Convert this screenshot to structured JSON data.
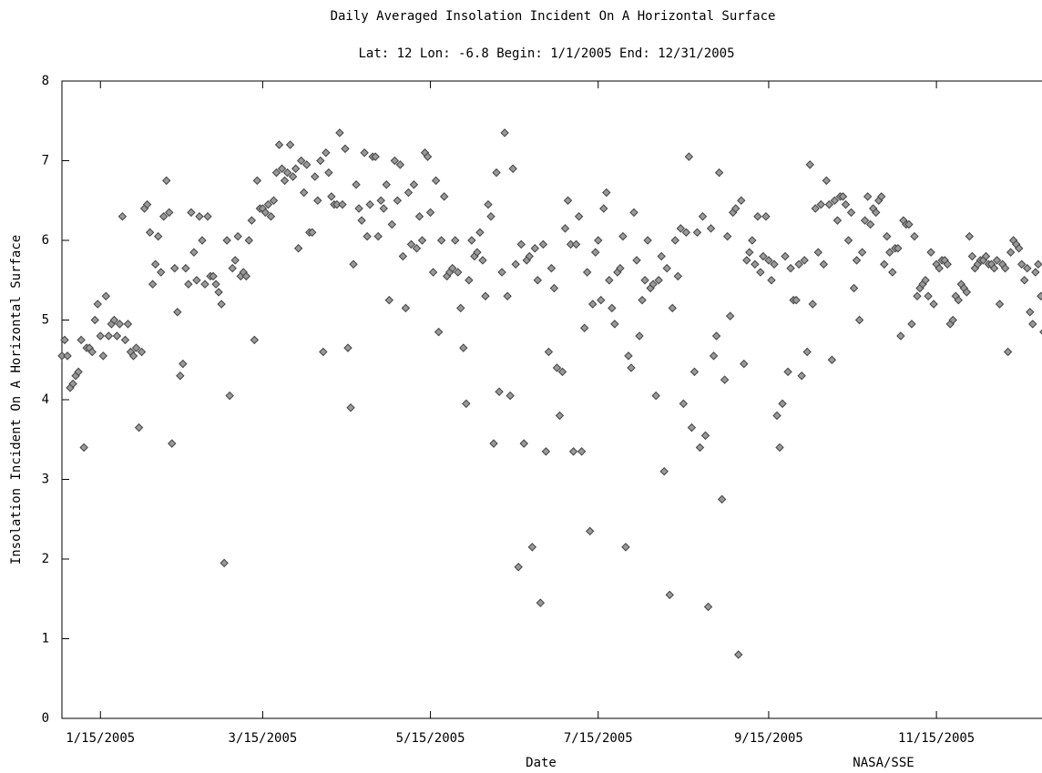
{
  "chart_data": {
    "type": "scatter",
    "title": "Daily Averaged Insolation Incident On A Horizontal Surface",
    "subtitle": "Lat: 12 Lon: -6.8   Begin: 1/1/2005   End: 12/31/2005",
    "y_label": "Insolation Incident On A Horizontal Surface",
    "x_label": "Date",
    "credit": "NASA/SSE",
    "color": "#999999",
    "xlim": [
      "1/1/2005",
      "12/31/2005"
    ],
    "xticks": [
      "1/15/2005",
      "3/15/2005",
      "5/15/2005",
      "7/15/2005",
      "9/15/2005",
      "11/15/2005"
    ],
    "ylim": [
      0,
      8
    ],
    "yticks": [
      0,
      1,
      2,
      3,
      4,
      5,
      6,
      7,
      8
    ],
    "x": [
      "1/1/2005",
      "1/2/2005",
      "1/3/2005",
      "1/4/2005",
      "1/5/2005",
      "1/6/2005",
      "1/7/2005",
      "1/8/2005",
      "1/9/2005",
      "1/10/2005",
      "1/11/2005",
      "1/12/2005",
      "1/13/2005",
      "1/14/2005",
      "1/15/2005",
      "1/16/2005",
      "1/17/2005",
      "1/18/2005",
      "1/19/2005",
      "1/20/2005",
      "1/21/2005",
      "1/22/2005",
      "1/23/2005",
      "1/24/2005",
      "1/25/2005",
      "1/26/2005",
      "1/27/2005",
      "1/28/2005",
      "1/29/2005",
      "1/30/2005",
      "1/31/2005",
      "2/1/2005",
      "2/2/2005",
      "2/3/2005",
      "2/4/2005",
      "2/5/2005",
      "2/6/2005",
      "2/7/2005",
      "2/8/2005",
      "2/9/2005",
      "2/10/2005",
      "2/11/2005",
      "2/12/2005",
      "2/13/2005",
      "2/14/2005",
      "2/15/2005",
      "2/16/2005",
      "2/17/2005",
      "2/18/2005",
      "2/19/2005",
      "2/20/2005",
      "2/21/2005",
      "2/22/2005",
      "2/23/2005",
      "2/24/2005",
      "2/25/2005",
      "2/26/2005",
      "2/27/2005",
      "2/28/2005",
      "3/1/2005",
      "3/2/2005",
      "3/3/2005",
      "3/4/2005",
      "3/5/2005",
      "3/6/2005",
      "3/7/2005",
      "3/8/2005",
      "3/9/2005",
      "3/10/2005",
      "3/11/2005",
      "3/12/2005",
      "3/13/2005",
      "3/14/2005",
      "3/15/2005",
      "3/16/2005",
      "3/17/2005",
      "3/18/2005",
      "3/19/2005",
      "3/20/2005",
      "3/21/2005",
      "3/22/2005",
      "3/23/2005",
      "3/24/2005",
      "3/25/2005",
      "3/26/2005",
      "3/27/2005",
      "3/28/2005",
      "3/29/2005",
      "3/30/2005",
      "3/31/2005",
      "4/1/2005",
      "4/2/2005",
      "4/3/2005",
      "4/4/2005",
      "4/5/2005",
      "4/6/2005",
      "4/7/2005",
      "4/8/2005",
      "4/9/2005",
      "4/10/2005",
      "4/11/2005",
      "4/12/2005",
      "4/13/2005",
      "4/14/2005",
      "4/15/2005",
      "4/16/2005",
      "4/17/2005",
      "4/18/2005",
      "4/19/2005",
      "4/20/2005",
      "4/21/2005",
      "4/22/2005",
      "4/23/2005",
      "4/24/2005",
      "4/25/2005",
      "4/26/2005",
      "4/27/2005",
      "4/28/2005",
      "4/29/2005",
      "4/30/2005",
      "5/1/2005",
      "5/2/2005",
      "5/3/2005",
      "5/4/2005",
      "5/5/2005",
      "5/6/2005",
      "5/7/2005",
      "5/8/2005",
      "5/9/2005",
      "5/10/2005",
      "5/11/2005",
      "5/12/2005",
      "5/13/2005",
      "5/14/2005",
      "5/15/2005",
      "5/16/2005",
      "5/17/2005",
      "5/18/2005",
      "5/19/2005",
      "5/20/2005",
      "5/21/2005",
      "5/22/2005",
      "5/23/2005",
      "5/24/2005",
      "5/25/2005",
      "5/26/2005",
      "5/27/2005",
      "5/28/2005",
      "5/29/2005",
      "5/30/2005",
      "5/31/2005",
      "6/1/2005",
      "6/2/2005",
      "6/3/2005",
      "6/4/2005",
      "6/5/2005",
      "6/6/2005",
      "6/7/2005",
      "6/8/2005",
      "6/9/2005",
      "6/10/2005",
      "6/11/2005",
      "6/12/2005",
      "6/13/2005",
      "6/14/2005",
      "6/15/2005",
      "6/16/2005",
      "6/17/2005",
      "6/18/2005",
      "6/19/2005",
      "6/20/2005",
      "6/21/2005",
      "6/22/2005",
      "6/23/2005",
      "6/24/2005",
      "6/25/2005",
      "6/26/2005",
      "6/27/2005",
      "6/28/2005",
      "6/29/2005",
      "6/30/2005",
      "7/1/2005",
      "7/2/2005",
      "7/3/2005",
      "7/4/2005",
      "7/5/2005",
      "7/6/2005",
      "7/7/2005",
      "7/8/2005",
      "7/9/2005",
      "7/10/2005",
      "7/11/2005",
      "7/12/2005",
      "7/13/2005",
      "7/14/2005",
      "7/15/2005",
      "7/16/2005",
      "7/17/2005",
      "7/18/2005",
      "7/19/2005",
      "7/20/2005",
      "7/21/2005",
      "7/22/2005",
      "7/23/2005",
      "7/24/2005",
      "7/25/2005",
      "7/26/2005",
      "7/27/2005",
      "7/28/2005",
      "7/29/2005",
      "7/30/2005",
      "7/31/2005",
      "8/1/2005",
      "8/2/2005",
      "8/3/2005",
      "8/4/2005",
      "8/5/2005",
      "8/6/2005",
      "8/7/2005",
      "8/8/2005",
      "8/9/2005",
      "8/10/2005",
      "8/11/2005",
      "8/12/2005",
      "8/13/2005",
      "8/14/2005",
      "8/15/2005",
      "8/16/2005",
      "8/17/2005",
      "8/18/2005",
      "8/19/2005",
      "8/20/2005",
      "8/21/2005",
      "8/22/2005",
      "8/23/2005",
      "8/24/2005",
      "8/25/2005",
      "8/26/2005",
      "8/27/2005",
      "8/28/2005",
      "8/29/2005",
      "8/30/2005",
      "8/31/2005",
      "9/1/2005",
      "9/2/2005",
      "9/3/2005",
      "9/4/2005",
      "9/5/2005",
      "9/6/2005",
      "9/7/2005",
      "9/8/2005",
      "9/9/2005",
      "9/10/2005",
      "9/11/2005",
      "9/12/2005",
      "9/13/2005",
      "9/14/2005",
      "9/15/2005",
      "9/16/2005",
      "9/17/2005",
      "9/18/2005",
      "9/19/2005",
      "9/20/2005",
      "9/21/2005",
      "9/22/2005",
      "9/23/2005",
      "9/24/2005",
      "9/25/2005",
      "9/26/2005",
      "9/27/2005",
      "9/28/2005",
      "9/29/2005",
      "9/30/2005",
      "10/1/2005",
      "10/2/2005",
      "10/3/2005",
      "10/4/2005",
      "10/5/2005",
      "10/6/2005",
      "10/7/2005",
      "10/8/2005",
      "10/9/2005",
      "10/10/2005",
      "10/11/2005",
      "10/12/2005",
      "10/13/2005",
      "10/14/2005",
      "10/15/2005",
      "10/16/2005",
      "10/17/2005",
      "10/18/2005",
      "10/19/2005",
      "10/20/2005",
      "10/21/2005",
      "10/22/2005",
      "10/23/2005",
      "10/24/2005",
      "10/25/2005",
      "10/26/2005",
      "10/27/2005",
      "10/28/2005",
      "10/29/2005",
      "10/30/2005",
      "10/31/2005",
      "11/1/2005",
      "11/2/2005",
      "11/3/2005",
      "11/4/2005",
      "11/5/2005",
      "11/6/2005",
      "11/7/2005",
      "11/8/2005",
      "11/9/2005",
      "11/10/2005",
      "11/11/2005",
      "11/12/2005",
      "11/13/2005",
      "11/14/2005",
      "11/15/2005",
      "11/16/2005",
      "11/17/2005",
      "11/18/2005",
      "11/19/2005",
      "11/20/2005",
      "11/21/2005",
      "11/22/2005",
      "11/23/2005",
      "11/24/2005",
      "11/25/2005",
      "11/26/2005",
      "11/27/2005",
      "11/28/2005",
      "11/29/2005",
      "11/30/2005",
      "12/1/2005",
      "12/2/2005",
      "12/3/2005",
      "12/4/2005",
      "12/5/2005",
      "12/6/2005",
      "12/7/2005",
      "12/8/2005",
      "12/9/2005",
      "12/10/2005",
      "12/11/2005",
      "12/12/2005",
      "12/13/2005",
      "12/14/2005",
      "12/15/2005",
      "12/16/2005",
      "12/17/2005",
      "12/18/2005",
      "12/19/2005",
      "12/20/2005",
      "12/21/2005",
      "12/22/2005",
      "12/23/2005",
      "12/24/2005",
      "12/25/2005",
      "12/26/2005",
      "12/27/2005",
      "12/28/2005",
      "12/29/2005",
      "12/30/2005",
      "12/31/2005"
    ],
    "values": [
      4.55,
      4.75,
      4.55,
      4.15,
      4.2,
      4.3,
      4.35,
      4.75,
      3.4,
      4.65,
      4.65,
      4.6,
      5.0,
      5.2,
      4.8,
      4.55,
      5.3,
      4.8,
      4.95,
      5.0,
      4.8,
      4.95,
      6.3,
      4.75,
      4.95,
      4.6,
      4.55,
      4.65,
      3.65,
      4.6,
      6.4,
      6.45,
      6.1,
      5.45,
      5.7,
      6.05,
      5.6,
      6.3,
      6.75,
      6.35,
      3.45,
      5.65,
      5.1,
      4.3,
      4.45,
      5.65,
      5.45,
      6.35,
      5.85,
      5.5,
      6.3,
      6.0,
      5.45,
      6.3,
      5.55,
      5.55,
      5.45,
      5.35,
      5.2,
      1.95,
      6.0,
      4.05,
      5.65,
      5.75,
      6.05,
      5.55,
      5.6,
      5.55,
      6.0,
      6.25,
      4.75,
      6.75,
      6.4,
      6.4,
      6.35,
      6.45,
      6.3,
      6.5,
      6.85,
      7.2,
      6.9,
      6.75,
      6.85,
      7.2,
      6.8,
      6.9,
      5.9,
      7.0,
      6.6,
      6.95,
      6.1,
      6.1,
      6.8,
      6.5,
      7.0,
      4.6,
      7.1,
      6.85,
      6.55,
      6.45,
      6.45,
      7.35,
      6.45,
      7.15,
      4.65,
      3.9,
      5.7,
      6.7,
      6.4,
      6.25,
      7.1,
      6.05,
      6.45,
      7.05,
      7.05,
      6.05,
      6.5,
      6.4,
      6.7,
      5.25,
      6.2,
      7.0,
      6.5,
      6.95,
      5.8,
      5.15,
      6.6,
      5.95,
      6.7,
      5.9,
      6.3,
      6.0,
      7.1,
      7.05,
      6.35,
      5.6,
      6.75,
      4.85,
      6.0,
      6.55,
      5.55,
      5.6,
      5.65,
      6.0,
      5.6,
      5.15,
      4.65,
      3.95,
      5.5,
      6.0,
      5.8,
      5.85,
      6.1,
      5.75,
      5.3,
      6.45,
      6.3,
      3.45,
      6.85,
      4.1,
      5.6,
      7.35,
      5.3,
      4.05,
      6.9,
      5.7,
      1.9,
      5.95,
      3.45,
      5.75,
      5.8,
      2.15,
      5.9,
      5.5,
      1.45,
      5.95,
      3.35,
      4.6,
      5.65,
      5.4,
      4.4,
      3.8,
      4.35,
      6.15,
      6.5,
      5.95,
      3.35,
      5.95,
      6.3,
      3.35,
      4.9,
      5.6,
      2.35,
      5.2,
      5.85,
      6.0,
      5.25,
      6.4,
      6.6,
      5.5,
      5.15,
      4.95,
      5.6,
      5.65,
      6.05,
      2.15,
      4.55,
      4.4,
      6.35,
      5.75,
      4.8,
      5.25,
      5.5,
      6.0,
      5.4,
      5.45,
      4.05,
      5.5,
      5.8,
      3.1,
      5.65,
      1.55,
      5.15,
      6.0,
      5.55,
      6.15,
      3.95,
      6.1,
      7.05,
      3.65,
      4.35,
      6.1,
      3.4,
      6.3,
      3.55,
      1.4,
      6.15,
      4.55,
      4.8,
      6.85,
      2.75,
      4.25,
      6.05,
      5.05,
      6.35,
      6.4,
      0.8,
      6.5,
      4.45,
      5.75,
      5.85,
      6.0,
      5.7,
      6.3,
      5.6,
      5.8,
      6.3,
      5.75,
      5.5,
      5.7,
      3.8,
      3.4,
      3.95,
      5.8,
      4.35,
      5.65,
      5.25,
      5.25,
      5.7,
      4.3,
      5.75,
      4.6,
      6.95,
      5.2,
      6.4,
      5.85,
      6.45,
      5.7,
      6.75,
      6.45,
      4.5,
      6.5,
      6.25,
      6.55,
      6.55,
      6.45,
      6.0,
      6.35,
      5.4,
      5.75,
      5.0,
      5.85,
      6.25,
      6.55,
      6.2,
      6.4,
      6.35,
      6.5,
      6.55,
      5.7,
      6.05,
      5.85,
      5.6,
      5.9,
      5.9,
      4.8,
      6.25,
      6.2,
      6.2,
      4.95,
      6.05,
      5.3,
      5.4,
      5.45,
      5.5,
      5.3,
      5.85,
      5.2,
      5.7,
      5.65,
      5.75,
      5.75,
      5.7,
      4.95,
      5.0,
      5.3,
      5.25,
      5.45,
      5.4,
      5.35,
      6.05,
      5.8,
      5.65,
      5.7,
      5.75,
      5.75,
      5.8,
      5.7,
      5.7,
      5.65,
      5.75,
      5.2,
      5.7,
      5.65,
      4.6,
      5.85,
      6.0,
      5.95,
      5.9,
      5.7,
      5.5,
      5.65,
      5.1,
      4.95,
      5.6,
      5.7,
      5.3,
      4.85,
      4.7,
      4.95,
      5.4,
      5.6,
      4.9,
      5.2,
      5.0
    ]
  }
}
